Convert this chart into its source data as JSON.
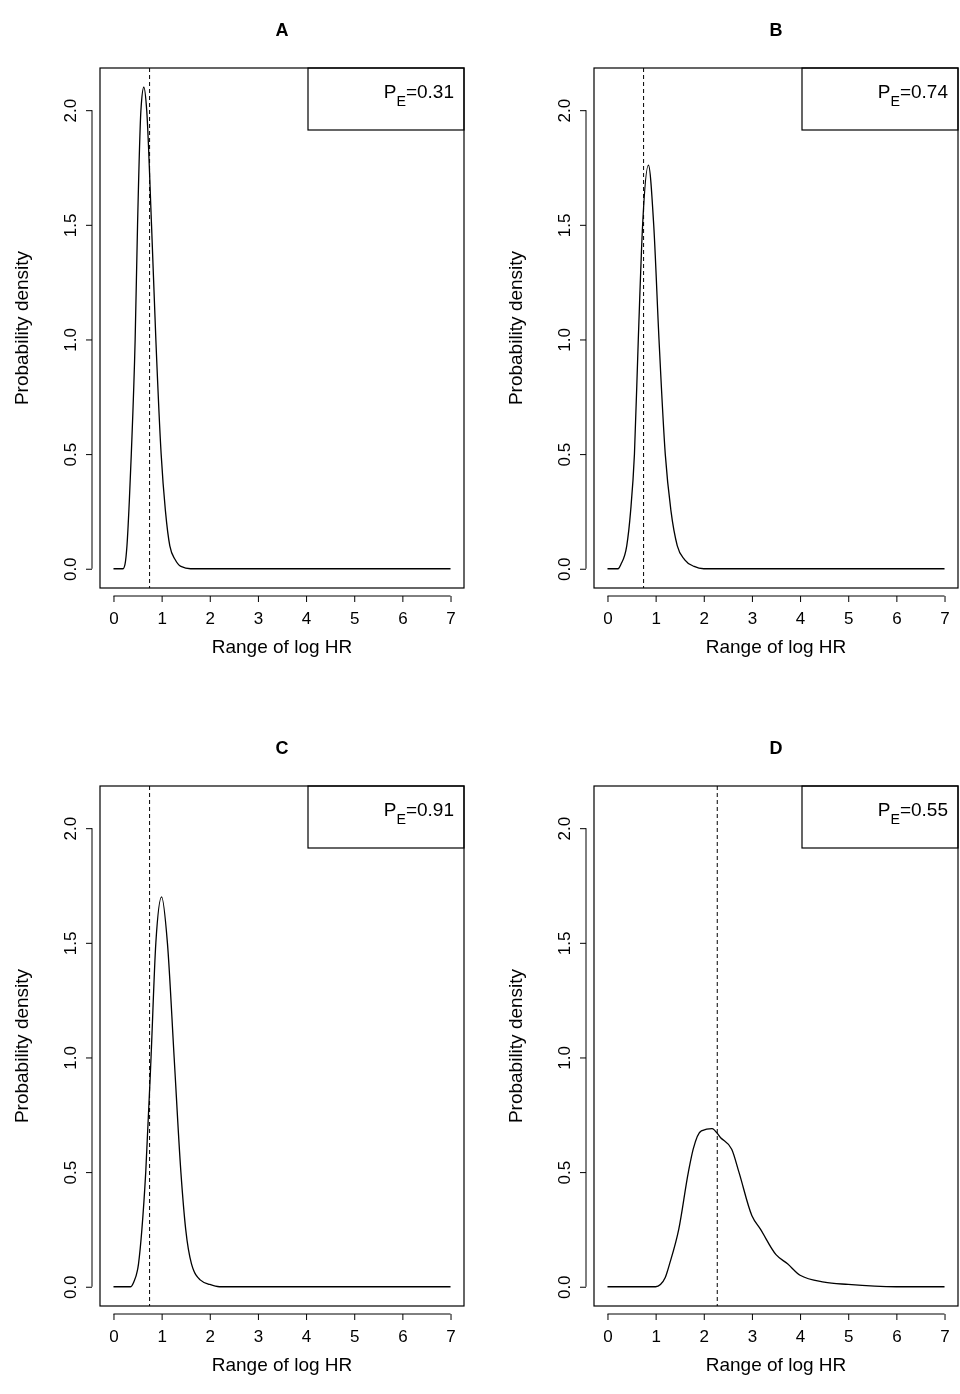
{
  "chart_data": [
    {
      "type": "line",
      "title": "A",
      "xlabel": "Range of log HR",
      "ylabel": "Probability density",
      "xlim": [
        -0.28,
        7.28
      ],
      "ylim": [
        -0.084,
        2.184
      ],
      "xticks": [
        0,
        1,
        2,
        3,
        4,
        5,
        6,
        7
      ],
      "yticks": [
        {
          "value": 0,
          "label": "0.0"
        },
        {
          "value": 0.5,
          "label": "0.5"
        },
        {
          "value": 1,
          "label": "1.0"
        },
        {
          "value": 1.5,
          "label": "1.5"
        },
        {
          "value": 2,
          "label": "2.0"
        }
      ],
      "annotations": [
        "P$_{E}$=0.31"
      ],
      "ref_lines": [
        {
          "axis": "x",
          "value": 0.75,
          "line_style": "dashed",
          "color": "#000000"
        }
      ],
      "series": [
        {
          "color": "#000000",
          "x": [
            0,
            0.2,
            0.24,
            0.28,
            0.33,
            0.37,
            0.45,
            0.5,
            0.57,
            0.63,
            0.69,
            0.79,
            0.88,
            0.99,
            1.08,
            1.17,
            1.28,
            1.4,
            1.6,
            7
          ],
          "values": [
            0,
            0,
            0.02,
            0.1,
            0.3,
            0.5,
            1.0,
            1.5,
            2.0,
            2.1,
            2.0,
            1.5,
            1.0,
            0.5,
            0.25,
            0.1,
            0.04,
            0.01,
            0,
            0
          ]
        }
      ]
    },
    {
      "type": "line",
      "title": "B",
      "xlabel": "Range of log HR",
      "ylabel": "Probability density",
      "xlim": [
        -0.28,
        7.28
      ],
      "ylim": [
        -0.084,
        2.184
      ],
      "xticks": [
        0,
        1,
        2,
        3,
        4,
        5,
        6,
        7
      ],
      "yticks": [
        {
          "value": 0,
          "label": "0.0"
        },
        {
          "value": 0.5,
          "label": "0.5"
        },
        {
          "value": 1,
          "label": "1.0"
        },
        {
          "value": 1.5,
          "label": "1.5"
        },
        {
          "value": 2,
          "label": "2.0"
        }
      ],
      "annotations": [
        "P$_{E}$=0.74"
      ],
      "ref_lines": [
        {
          "axis": "x",
          "value": 0.75,
          "line_style": "dashed",
          "color": "#000000"
        }
      ],
      "series": [
        {
          "color": "#000000",
          "x": [
            0,
            0.22,
            0.28,
            0.4,
            0.48,
            0.56,
            0.64,
            0.73,
            0.85,
            0.96,
            1.07,
            1.2,
            1.32,
            1.45,
            1.6,
            1.8,
            2.0,
            7
          ],
          "values": [
            0,
            0,
            0.02,
            0.1,
            0.25,
            0.5,
            1.0,
            1.5,
            1.76,
            1.5,
            1.0,
            0.5,
            0.25,
            0.1,
            0.04,
            0.01,
            0,
            0
          ]
        }
      ]
    },
    {
      "type": "line",
      "title": "C",
      "xlabel": "Range of log HR",
      "ylabel": "Probability density",
      "xlim": [
        -0.28,
        7.28
      ],
      "ylim": [
        -0.084,
        2.184
      ],
      "xticks": [
        0,
        1,
        2,
        3,
        4,
        5,
        6,
        7
      ],
      "yticks": [
        {
          "value": 0,
          "label": "0.0"
        },
        {
          "value": 0.5,
          "label": "0.5"
        },
        {
          "value": 1,
          "label": "1.0"
        },
        {
          "value": 1.5,
          "label": "1.5"
        },
        {
          "value": 2,
          "label": "2.0"
        }
      ],
      "annotations": [
        "P$_{E}$=0.91"
      ],
      "ref_lines": [
        {
          "axis": "x",
          "value": 0.75,
          "line_style": "dashed",
          "color": "#000000"
        }
      ],
      "series": [
        {
          "color": "#000000",
          "x": [
            0,
            0.35,
            0.42,
            0.52,
            0.59,
            0.67,
            0.78,
            0.88,
            1.0,
            1.12,
            1.26,
            1.4,
            1.5,
            1.62,
            1.8,
            2.0,
            2.2,
            7
          ],
          "values": [
            0,
            0,
            0.02,
            0.1,
            0.25,
            0.5,
            1.0,
            1.5,
            1.7,
            1.5,
            1.0,
            0.5,
            0.25,
            0.1,
            0.03,
            0.01,
            0,
            0
          ]
        }
      ]
    },
    {
      "type": "line",
      "title": "D",
      "xlabel": "Range of log HR",
      "ylabel": "Probability density",
      "xlim": [
        -0.28,
        7.28
      ],
      "ylim": [
        -0.084,
        2.184
      ],
      "xticks": [
        0,
        1,
        2,
        3,
        4,
        5,
        6,
        7
      ],
      "yticks": [
        {
          "value": 0,
          "label": "0.0"
        },
        {
          "value": 0.5,
          "label": "0.5"
        },
        {
          "value": 1,
          "label": "1.0"
        },
        {
          "value": 1.5,
          "label": "1.5"
        },
        {
          "value": 2,
          "label": "2.0"
        }
      ],
      "annotations": [
        "P$_{E}$=0.55"
      ],
      "ref_lines": [
        {
          "axis": "x",
          "value": 2.28,
          "line_style": "dashed",
          "color": "#000000"
        }
      ],
      "series": [
        {
          "color": "#000000",
          "x": [
            0,
            1.0,
            1.1,
            1.2,
            1.29,
            1.48,
            1.68,
            1.78,
            1.95,
            2.17,
            2.35,
            2.58,
            2.73,
            3.0,
            3.18,
            3.5,
            3.74,
            4.0,
            4.5,
            5.0,
            6,
            7
          ],
          "values": [
            0,
            0,
            0.01,
            0.04,
            0.1,
            0.25,
            0.5,
            0.6,
            0.68,
            0.69,
            0.65,
            0.6,
            0.5,
            0.31,
            0.25,
            0.14,
            0.1,
            0.05,
            0.02,
            0.01,
            0,
            0
          ]
        }
      ]
    }
  ]
}
